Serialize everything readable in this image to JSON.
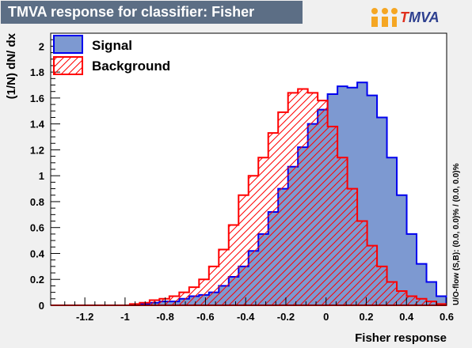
{
  "title": "TMVA response for classifier: Fisher",
  "logo": {
    "first_letter": "T",
    "rest": "MVA"
  },
  "side_label": "U/O-flow (S,B): (0.0, 0.0)% / (0.0, 0.0)%",
  "colors": {
    "signal_fill": "#7d99d1",
    "signal_line": "#0000ee",
    "background_line": "#ff0000",
    "background_hatch": "#ff0000",
    "title_bar": "#5c6e85",
    "canvas": "#f0f0f0",
    "frame": "#ffffff"
  },
  "chart_data": {
    "type": "histogram",
    "title": "TMVA response for classifier: Fisher",
    "xlabel": "Fisher response",
    "ylabel": "(1/N) dN/ dx",
    "xlim": [
      -1.37,
      0.6
    ],
    "ylim": [
      0,
      2.1
    ],
    "xticks": [
      -1.2,
      -1,
      -0.8,
      -0.6,
      -0.4,
      -0.2,
      0,
      0.2,
      0.4,
      0.6
    ],
    "xtick_labels": [
      "-1.2",
      "-1",
      "-0.8",
      "-0.6",
      "-0.4",
      "-0.2",
      "0",
      "0.2",
      "0.4",
      "0.6"
    ],
    "yticks": [
      0,
      0.2,
      0.4,
      0.6,
      0.8,
      1,
      1.2,
      1.4,
      1.6,
      1.8,
      2
    ],
    "ytick_labels": [
      "0",
      "0.2",
      "0.4",
      "0.6",
      "0.8",
      "1",
      "1.2",
      "1.4",
      "1.6",
      "1.8",
      "2"
    ],
    "legend": [
      "Signal",
      "Background"
    ],
    "legend_position": "top-left",
    "bin_edges": [
      -1.37,
      -1.3208,
      -1.2716,
      -1.2224,
      -1.1732,
      -1.124,
      -1.0748,
      -1.0256,
      -0.9764,
      -0.9272,
      -0.878,
      -0.8288,
      -0.7796,
      -0.7304,
      -0.6812,
      -0.632,
      -0.5828,
      -0.5336,
      -0.4844,
      -0.4352,
      -0.386,
      -0.3368,
      -0.2876,
      -0.2384,
      -0.1892,
      -0.14,
      -0.0908,
      -0.0416,
      0.0076,
      0.0568,
      0.106,
      0.1552,
      0.2044,
      0.2536,
      0.3028,
      0.352,
      0.4012,
      0.4504,
      0.4996,
      0.5488,
      0.598
    ],
    "series": [
      {
        "name": "Signal",
        "values": [
          0,
          0,
          0,
          0,
          0,
          0,
          0,
          0,
          0.005,
          0.01,
          0.02,
          0.03,
          0.03,
          0.05,
          0.07,
          0.08,
          0.1,
          0.15,
          0.22,
          0.3,
          0.42,
          0.55,
          0.72,
          0.9,
          1.07,
          1.22,
          1.4,
          1.51,
          1.63,
          1.69,
          1.68,
          1.72,
          1.62,
          1.45,
          1.14,
          0.85,
          0.55,
          0.32,
          0.18,
          0.07
        ]
      },
      {
        "name": "Background",
        "values": [
          0,
          0,
          0,
          0,
          0,
          0,
          0,
          0,
          0.01,
          0.02,
          0.04,
          0.05,
          0.07,
          0.1,
          0.14,
          0.2,
          0.3,
          0.43,
          0.62,
          0.85,
          1.0,
          1.14,
          1.33,
          1.49,
          1.64,
          1.67,
          1.64,
          1.58,
          1.38,
          1.14,
          0.9,
          0.65,
          0.46,
          0.3,
          0.18,
          0.11,
          0.07,
          0.05,
          0.03,
          0.01
        ]
      }
    ]
  }
}
